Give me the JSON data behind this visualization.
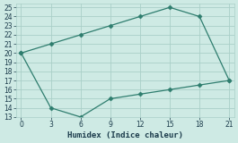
{
  "line1_x": [
    0,
    3,
    6,
    9,
    12,
    15,
    18,
    21
  ],
  "line1_y": [
    20,
    21,
    22,
    23,
    24,
    25,
    24,
    17
  ],
  "line2_x": [
    0,
    3,
    6,
    9,
    12,
    15,
    18,
    21
  ],
  "line2_y": [
    20,
    14,
    13,
    15,
    15.5,
    16,
    16.5,
    17
  ],
  "line_color": "#2e7d6e",
  "bg_color": "#ceeae4",
  "grid_color": "#aacfc8",
  "xlabel": "Humidex (Indice chaleur)",
  "xlim": [
    -0.5,
    21.5
  ],
  "ylim": [
    13,
    25.4
  ],
  "xticks": [
    0,
    3,
    6,
    9,
    12,
    15,
    18,
    21
  ],
  "yticks": [
    13,
    14,
    15,
    16,
    17,
    18,
    19,
    20,
    21,
    22,
    23,
    24,
    25
  ],
  "font_color": "#1a3a4a",
  "markersize": 2.5,
  "linewidth": 0.9
}
